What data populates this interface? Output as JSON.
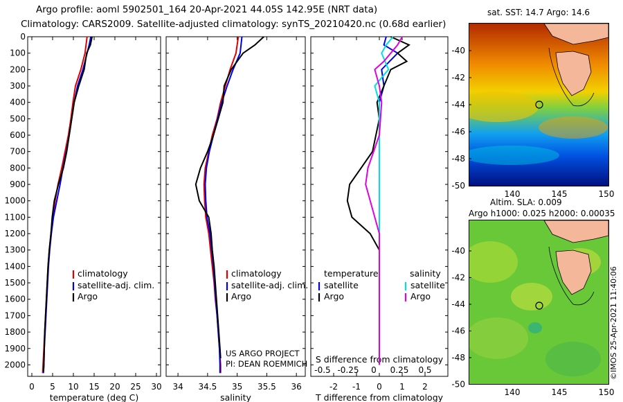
{
  "header": {
    "line1": "Argo profile: aoml 5902501_164 20-Apr-2021 44.05S 142.95E (NRT data)",
    "line2": "Climatology: CARS2009. Satellite-adjusted climatology: synTS_20210420.nc (0.68d earlier)"
  },
  "colors": {
    "climatology": "#e00000",
    "satellite": "#0000e8",
    "argo": "#000000",
    "sat_salinity": "#00e0e0",
    "argo_salinity": "#e000e0",
    "land": "#f5b79a"
  },
  "legend_left": {
    "climatology": "climatology",
    "satellite": "satellite-adj. clim.",
    "argo": "Argo"
  },
  "legend_right": {
    "temperature": "temperature",
    "salinity": "salinity",
    "satellite": "satellite",
    "argo": "Argo"
  },
  "credit": {
    "line1": "US ARGO PROJECT",
    "line2": "PI: DEAN ROEMMICH"
  },
  "imos_stamp": "©IMOS 25-Apr-2021 11:40:06",
  "maps": {
    "sst_title": "sat. SST: 14.7 Argo: 14.6",
    "sla_title_1": "Altim. SLA: 0.009",
    "sla_title_2": "Argo h1000: 0.025 h2000: 0.00035",
    "lat_ticks": [
      "-40",
      "-42",
      "-44",
      "-46",
      "-48",
      "-50"
    ],
    "lon_ticks": [
      "140",
      "145",
      "150"
    ]
  },
  "chart_data": [
    {
      "type": "line",
      "title": "",
      "xlabel": "temperature (deg C)",
      "ylabel": "",
      "xlim": [
        -1,
        31
      ],
      "ylim": [
        2070,
        0
      ],
      "xticks": [
        "0",
        "5",
        "10",
        "15",
        "20",
        "25",
        "30"
      ],
      "yticks": [
        "0",
        "100",
        "200",
        "300",
        "400",
        "500",
        "600",
        "700",
        "800",
        "900",
        "1000",
        "1100",
        "1200",
        "1300",
        "1400",
        "1500",
        "1600",
        "1700",
        "1800",
        "1900",
        "2000"
      ],
      "series": [
        {
          "name": "climatology",
          "points": [
            [
              13.3,
              0
            ],
            [
              12.8,
              100
            ],
            [
              11.8,
              200
            ],
            [
              10.5,
              300
            ],
            [
              9.9,
              400
            ],
            [
              9.4,
              500
            ],
            [
              8.8,
              600
            ],
            [
              8.0,
              700
            ],
            [
              7.2,
              800
            ],
            [
              6.3,
              900
            ],
            [
              5.6,
              1000
            ],
            [
              5.0,
              1100
            ],
            [
              4.6,
              1200
            ],
            [
              4.2,
              1300
            ],
            [
              3.9,
              1400
            ],
            [
              3.7,
              1500
            ],
            [
              3.5,
              1600
            ],
            [
              3.3,
              1700
            ],
            [
              3.1,
              1800
            ],
            [
              2.9,
              1900
            ],
            [
              2.7,
              2000
            ],
            [
              2.6,
              2050
            ]
          ]
        },
        {
          "name": "satellite-adj. clim.",
          "points": [
            [
              14.2,
              0
            ],
            [
              13.8,
              50
            ],
            [
              13.3,
              100
            ],
            [
              12.3,
              200
            ],
            [
              11.0,
              300
            ],
            [
              10.2,
              400
            ],
            [
              9.6,
              500
            ],
            [
              9.0,
              600
            ],
            [
              8.3,
              700
            ],
            [
              7.5,
              800
            ],
            [
              6.8,
              900
            ],
            [
              6.0,
              1000
            ],
            [
              5.2,
              1100
            ],
            [
              4.7,
              1200
            ],
            [
              4.3,
              1300
            ],
            [
              4.0,
              1400
            ],
            [
              3.8,
              1500
            ],
            [
              3.6,
              1600
            ],
            [
              3.4,
              1700
            ],
            [
              3.2,
              1800
            ],
            [
              3.0,
              1900
            ],
            [
              2.9,
              2000
            ],
            [
              2.8,
              2050
            ]
          ]
        },
        {
          "name": "Argo",
          "points": [
            [
              14.5,
              0
            ],
            [
              14.1,
              50
            ],
            [
              13.2,
              100
            ],
            [
              12.6,
              200
            ],
            [
              11.3,
              300
            ],
            [
              10.2,
              400
            ],
            [
              9.6,
              500
            ],
            [
              9.0,
              600
            ],
            [
              8.4,
              700
            ],
            [
              7.6,
              800
            ],
            [
              6.4,
              900
            ],
            [
              5.4,
              1000
            ],
            [
              4.9,
              1100
            ],
            [
              4.6,
              1200
            ],
            [
              4.2,
              1300
            ],
            [
              3.9,
              1400
            ],
            [
              3.7,
              1500
            ],
            [
              3.5,
              1600
            ],
            [
              3.3,
              1700
            ],
            [
              3.1,
              1800
            ],
            [
              3.0,
              1900
            ],
            [
              2.9,
              2000
            ],
            [
              2.8,
              2040
            ]
          ]
        }
      ]
    },
    {
      "type": "line",
      "title": "",
      "xlabel": "salinity",
      "ylabel": "",
      "xlim": [
        33.8,
        36.15
      ],
      "ylim": [
        2070,
        0
      ],
      "xticks": [
        "34",
        "34.5",
        "35",
        "35.5",
        "36"
      ],
      "series": [
        {
          "name": "climatology",
          "points": [
            [
              35.02,
              0
            ],
            [
              34.98,
              100
            ],
            [
              34.88,
              200
            ],
            [
              34.8,
              300
            ],
            [
              34.72,
              400
            ],
            [
              34.66,
              500
            ],
            [
              34.58,
              600
            ],
            [
              34.52,
              700
            ],
            [
              34.46,
              800
            ],
            [
              34.44,
              900
            ],
            [
              34.45,
              1000
            ],
            [
              34.47,
              1100
            ],
            [
              34.52,
              1200
            ],
            [
              34.55,
              1300
            ],
            [
              34.58,
              1400
            ],
            [
              34.61,
              1500
            ],
            [
              34.63,
              1600
            ],
            [
              34.66,
              1700
            ],
            [
              34.68,
              1800
            ],
            [
              34.7,
              1900
            ],
            [
              34.72,
              2000
            ],
            [
              34.72,
              2050
            ]
          ]
        },
        {
          "name": "satellite-adj. clim.",
          "points": [
            [
              35.08,
              0
            ],
            [
              35.05,
              100
            ],
            [
              34.93,
              200
            ],
            [
              34.83,
              300
            ],
            [
              34.74,
              400
            ],
            [
              34.67,
              500
            ],
            [
              34.6,
              600
            ],
            [
              34.53,
              700
            ],
            [
              34.48,
              800
            ],
            [
              34.46,
              900
            ],
            [
              34.47,
              1000
            ],
            [
              34.49,
              1100
            ],
            [
              34.54,
              1200
            ],
            [
              34.57,
              1300
            ],
            [
              34.6,
              1400
            ],
            [
              34.62,
              1500
            ],
            [
              34.64,
              1600
            ],
            [
              34.66,
              1700
            ],
            [
              34.68,
              1800
            ],
            [
              34.7,
              1900
            ],
            [
              34.71,
              2000
            ],
            [
              34.71,
              2050
            ]
          ]
        },
        {
          "name": "Argo",
          "points": [
            [
              35.45,
              0
            ],
            [
              35.3,
              50
            ],
            [
              35.1,
              100
            ],
            [
              34.9,
              200
            ],
            [
              34.78,
              300
            ],
            [
              34.76,
              400
            ],
            [
              34.68,
              500
            ],
            [
              34.6,
              600
            ],
            [
              34.5,
              700
            ],
            [
              34.38,
              800
            ],
            [
              34.3,
              900
            ],
            [
              34.36,
              1000
            ],
            [
              34.52,
              1100
            ],
            [
              34.56,
              1200
            ],
            [
              34.58,
              1300
            ],
            [
              34.61,
              1400
            ],
            [
              34.63,
              1500
            ],
            [
              34.65,
              1600
            ],
            [
              34.67,
              1700
            ],
            [
              34.69,
              1800
            ],
            [
              34.71,
              1900
            ],
            [
              34.72,
              1960
            ]
          ]
        }
      ]
    },
    {
      "type": "line",
      "title": "",
      "xlabel": "T difference from climatology",
      "xlabel_top": "S difference from climatology",
      "ylabel": "",
      "xlim": [
        -3,
        3
      ],
      "ylim": [
        2070,
        0
      ],
      "xticks": [
        "-2",
        "-1",
        "0",
        "1",
        "2"
      ],
      "xticks_top": [
        "-0.5",
        "-0.25",
        "0",
        "0.25",
        "0.5"
      ],
      "series": [
        {
          "name": "temperature satellite",
          "points": [
            [
              0.3,
              0
            ],
            [
              0.2,
              50
            ],
            [
              0.8,
              100
            ],
            [
              0.1,
              200
            ],
            [
              0.2,
              300
            ],
            [
              0.0,
              400
            ],
            [
              0.0,
              500
            ],
            [
              0.0,
              700
            ],
            [
              0.0,
              900
            ],
            [
              0.0,
              1000
            ],
            [
              0.0,
              1200
            ],
            [
              0.0,
              1600
            ],
            [
              0.0,
              2000
            ]
          ]
        },
        {
          "name": "temperature Argo",
          "points": [
            [
              0.5,
              0
            ],
            [
              1.3,
              50
            ],
            [
              0.8,
              100
            ],
            [
              1.2,
              150
            ],
            [
              0.5,
              200
            ],
            [
              0.2,
              300
            ],
            [
              -0.1,
              400
            ],
            [
              0.0,
              500
            ],
            [
              -0.3,
              700
            ],
            [
              -0.8,
              800
            ],
            [
              -1.3,
              900
            ],
            [
              -1.4,
              1000
            ],
            [
              -1.2,
              1100
            ],
            [
              -0.4,
              1200
            ],
            [
              0.0,
              1300
            ],
            [
              0.0,
              1600
            ],
            [
              0.0,
              2000
            ]
          ]
        },
        {
          "name": "salinity satellite",
          "points": [
            [
              0.6,
              0
            ],
            [
              0.3,
              50
            ],
            [
              0.1,
              100
            ],
            [
              0.4,
              200
            ],
            [
              -0.2,
              300
            ],
            [
              0.0,
              400
            ],
            [
              0.0,
              600
            ],
            [
              0.0,
              900
            ],
            [
              0.0,
              1200
            ],
            [
              0.0,
              1600
            ],
            [
              0.0,
              2000
            ]
          ]
        },
        {
          "name": "salinity Argo",
          "points": [
            [
              1.0,
              0
            ],
            [
              0.8,
              50
            ],
            [
              0.2,
              150
            ],
            [
              -0.2,
              200
            ],
            [
              0.0,
              300
            ],
            [
              0.1,
              400
            ],
            [
              0.0,
              600
            ],
            [
              -0.5,
              800
            ],
            [
              -0.6,
              900
            ],
            [
              -0.4,
              1000
            ],
            [
              -0.2,
              1100
            ],
            [
              0.0,
              1200
            ],
            [
              0.0,
              1600
            ],
            [
              0.0,
              2000
            ]
          ]
        }
      ]
    }
  ]
}
